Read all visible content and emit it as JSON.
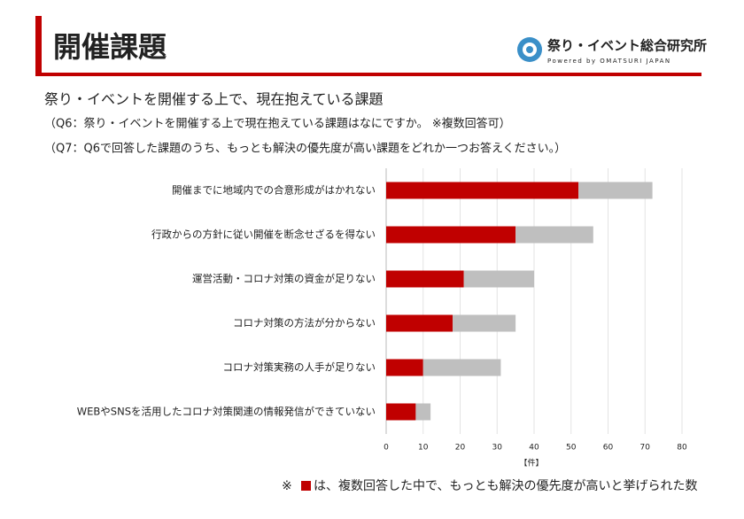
{
  "header": {
    "title": "開催課題",
    "logo_name": "祭り・イベント総合研究所",
    "logo_tagline": "Powered by OMATSURI JAPAN"
  },
  "chart_data": {
    "type": "stacked-barh",
    "title": "祭り・イベントを開催する上で、現在抱えている課題",
    "subtitles": [
      "（Q6：祭り・イベントを開催する上で現在抱えている課題はなにですか。 ※複数回答可）",
      "（Q7：Q6で回答した課題のうち、もっとも解決の優先度が高い課題をどれか一つお答えください。）"
    ],
    "categories": [
      "開催までに地域内での合意形成がはかれない",
      "行政からの方針に従い開催を断念せざるを得ない",
      "運営活動・コロナ対策の資金が足りない",
      "コロナ対策の方法が分からない",
      "コロナ対策実務の人手が足りない",
      "WEBやSNSを活用したコロナ対策関連の情報発信ができていない"
    ],
    "series": [
      {
        "color": "#c00000",
        "values": [
          52,
          35,
          21,
          18,
          10,
          8
        ]
      },
      {
        "color": "#bfbfbf",
        "values": [
          20,
          21,
          19,
          17,
          21,
          4
        ]
      }
    ],
    "xlim": [
      0,
      80
    ],
    "xticks": [
      0,
      10,
      20,
      30,
      40,
      50,
      60,
      70,
      80
    ],
    "grid": true,
    "x_label": "【件】",
    "footnote": {
      "mark": "※",
      "text": "は、複数回答した中で、もっとも解決の優先度が高いと挙げられた数"
    }
  }
}
